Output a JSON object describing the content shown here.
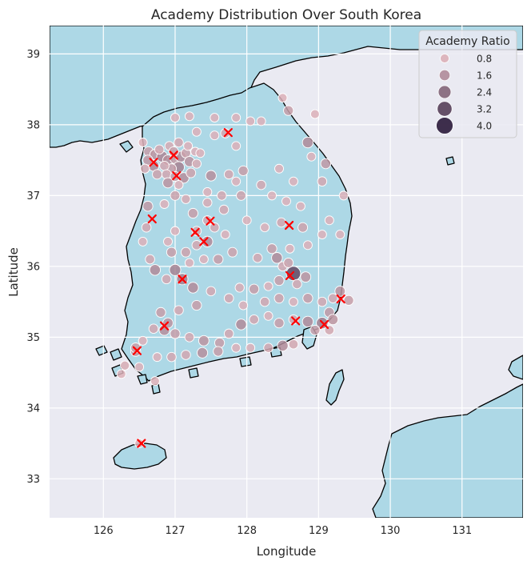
{
  "chart_data": {
    "type": "scatter",
    "title": "Academy Distribution Over South Korea",
    "xlabel": "Longitude",
    "ylabel": "Latitude",
    "xlim": [
      125.25,
      131.85
    ],
    "ylim": [
      32.45,
      39.4
    ],
    "xticks": [
      "126",
      "127",
      "128",
      "129",
      "130",
      "131"
    ],
    "yticks": [
      "33",
      "34",
      "35",
      "36",
      "37",
      "38",
      "39"
    ],
    "grid": true,
    "legend": {
      "title": "Academy Ratio",
      "placement": "top-right",
      "entries": [
        {
          "label": "0.8",
          "value": 0.8
        },
        {
          "label": "1.6",
          "value": 1.6
        },
        {
          "label": "2.4",
          "value": 2.4
        },
        {
          "label": "3.2",
          "value": 3.2
        },
        {
          "label": "4.0",
          "value": 4.0
        }
      ]
    },
    "colors": {
      "ocean": "#eaeaf2",
      "land": "#add8e6",
      "coast": "#000000",
      "grid": "#ffffff",
      "cross": "#ff0000",
      "ratio_low": "#dcb0b8",
      "ratio_high": "#2a1a3a"
    },
    "series": [
      {
        "name": "Academy Ratio",
        "marker": "circle",
        "points": [
          [
            126.55,
            37.75,
            0.8
          ],
          [
            126.63,
            37.62,
            1.2
          ],
          [
            126.72,
            37.58,
            1.4
          ],
          [
            126.82,
            37.55,
            1.7
          ],
          [
            126.9,
            37.5,
            1.5
          ],
          [
            127.0,
            37.52,
            1.3
          ],
          [
            127.08,
            37.55,
            1.6
          ],
          [
            127.15,
            37.6,
            1.1
          ],
          [
            127.2,
            37.48,
            1.4
          ],
          [
            127.05,
            37.4,
            1.8
          ],
          [
            126.95,
            37.38,
            1.2
          ],
          [
            126.85,
            37.42,
            1.0
          ],
          [
            126.7,
            37.42,
            1.6
          ],
          [
            126.62,
            37.5,
            1.3
          ],
          [
            126.78,
            37.65,
            1.0
          ],
          [
            126.92,
            37.7,
            0.9
          ],
          [
            127.05,
            37.75,
            1.0
          ],
          [
            127.18,
            37.7,
            0.8
          ],
          [
            126.75,
            37.3,
            1.1
          ],
          [
            126.88,
            37.3,
            1.0
          ],
          [
            127.0,
            37.27,
            1.2
          ],
          [
            127.12,
            37.25,
            1.5
          ],
          [
            127.22,
            37.32,
            1.1
          ],
          [
            127.3,
            37.45,
            0.9
          ],
          [
            127.28,
            37.62,
            0.8
          ],
          [
            126.98,
            37.62,
            1.2
          ],
          [
            126.58,
            37.38,
            0.9
          ],
          [
            126.9,
            37.18,
            1.4
          ],
          [
            127.05,
            37.15,
            0.8
          ],
          [
            127.0,
            37.0,
            1.1
          ],
          [
            127.15,
            36.95,
            0.9
          ],
          [
            126.85,
            36.88,
            0.8
          ],
          [
            126.62,
            36.85,
            1.3
          ],
          [
            127.45,
            37.05,
            0.8
          ],
          [
            127.5,
            37.28,
            1.5
          ],
          [
            127.75,
            37.3,
            1.0
          ],
          [
            127.95,
            37.35,
            1.2
          ],
          [
            127.85,
            37.2,
            0.8
          ],
          [
            128.2,
            37.15,
            1.0
          ],
          [
            128.45,
            37.38,
            0.8
          ],
          [
            128.65,
            37.2,
            0.8
          ],
          [
            128.9,
            37.55,
            0.8
          ],
          [
            129.05,
            37.2,
            1.0
          ],
          [
            129.1,
            37.45,
            1.3
          ],
          [
            129.15,
            36.65,
            0.8
          ],
          [
            129.35,
            37.0,
            0.8
          ],
          [
            129.3,
            36.45,
            0.8
          ],
          [
            128.58,
            38.2,
            1.2
          ],
          [
            128.5,
            38.38,
            0.8
          ],
          [
            128.85,
            37.75,
            1.6
          ],
          [
            128.05,
            38.05,
            0.8
          ],
          [
            127.85,
            38.1,
            0.8
          ],
          [
            127.55,
            38.1,
            0.8
          ],
          [
            127.2,
            38.12,
            0.8
          ],
          [
            127.0,
            38.1,
            0.8
          ],
          [
            127.3,
            37.9,
            0.8
          ],
          [
            127.55,
            37.85,
            0.8
          ],
          [
            127.85,
            37.7,
            0.8
          ],
          [
            128.2,
            38.05,
            0.8
          ],
          [
            127.7,
            37.88,
            1.0
          ],
          [
            127.35,
            37.6,
            0.8
          ],
          [
            128.95,
            38.15,
            0.8
          ],
          [
            127.65,
            37.0,
            1.0
          ],
          [
            127.92,
            37.0,
            1.1
          ],
          [
            128.35,
            37.0,
            0.8
          ],
          [
            128.55,
            36.92,
            0.8
          ],
          [
            128.75,
            36.85,
            0.8
          ],
          [
            128.0,
            36.65,
            0.8
          ],
          [
            128.25,
            36.55,
            0.8
          ],
          [
            128.48,
            36.62,
            1.0
          ],
          [
            128.78,
            36.55,
            1.1
          ],
          [
            129.05,
            36.45,
            0.8
          ],
          [
            128.85,
            36.3,
            0.8
          ],
          [
            128.6,
            36.25,
            0.8
          ],
          [
            128.35,
            36.25,
            1.2
          ],
          [
            128.15,
            36.12,
            1.0
          ],
          [
            128.42,
            36.12,
            1.6
          ],
          [
            128.5,
            36.0,
            1.0
          ],
          [
            128.65,
            35.9,
            3.0
          ],
          [
            128.58,
            36.05,
            1.1
          ],
          [
            128.45,
            35.8,
            1.2
          ],
          [
            128.7,
            35.75,
            1.0
          ],
          [
            128.82,
            35.85,
            1.4
          ],
          [
            128.3,
            35.72,
            0.8
          ],
          [
            128.1,
            35.68,
            1.2
          ],
          [
            127.9,
            35.7,
            0.9
          ],
          [
            127.75,
            35.55,
            1.0
          ],
          [
            127.95,
            35.45,
            0.8
          ],
          [
            128.25,
            35.5,
            1.0
          ],
          [
            128.45,
            35.55,
            1.1
          ],
          [
            128.65,
            35.5,
            0.8
          ],
          [
            128.85,
            35.55,
            1.2
          ],
          [
            129.05,
            35.5,
            1.0
          ],
          [
            129.2,
            35.55,
            1.0
          ],
          [
            129.42,
            35.52,
            1.2
          ],
          [
            129.3,
            35.65,
            1.4
          ],
          [
            129.15,
            35.35,
            1.3
          ],
          [
            129.05,
            35.2,
            1.9
          ],
          [
            128.95,
            35.1,
            1.2
          ],
          [
            129.15,
            35.1,
            1.0
          ],
          [
            129.2,
            35.25,
            1.4
          ],
          [
            128.85,
            35.22,
            1.6
          ],
          [
            128.65,
            35.25,
            1.0
          ],
          [
            128.45,
            35.2,
            1.2
          ],
          [
            128.3,
            35.3,
            0.8
          ],
          [
            128.1,
            35.25,
            1.0
          ],
          [
            127.92,
            35.18,
            1.6
          ],
          [
            127.75,
            35.05,
            1.0
          ],
          [
            127.62,
            34.92,
            1.2
          ],
          [
            127.4,
            34.95,
            1.4
          ],
          [
            127.2,
            35.0,
            1.0
          ],
          [
            127.0,
            35.05,
            1.2
          ],
          [
            126.85,
            35.1,
            1.5
          ],
          [
            126.9,
            35.2,
            1.4
          ],
          [
            126.7,
            35.12,
            1.0
          ],
          [
            126.55,
            34.95,
            0.8
          ],
          [
            126.45,
            34.8,
            1.3
          ],
          [
            126.3,
            34.6,
            0.9
          ],
          [
            126.25,
            34.48,
            0.8
          ],
          [
            126.5,
            34.58,
            0.8
          ],
          [
            126.75,
            34.72,
            0.8
          ],
          [
            126.95,
            34.72,
            1.0
          ],
          [
            127.15,
            34.75,
            1.0
          ],
          [
            127.38,
            34.78,
            1.5
          ],
          [
            127.6,
            34.8,
            1.2
          ],
          [
            127.85,
            34.85,
            0.8
          ],
          [
            128.05,
            34.85,
            0.8
          ],
          [
            128.3,
            34.85,
            1.0
          ],
          [
            128.5,
            34.88,
            1.6
          ],
          [
            128.65,
            34.9,
            1.0
          ],
          [
            126.72,
            34.38,
            0.8
          ],
          [
            126.8,
            35.35,
            1.2
          ],
          [
            127.05,
            35.38,
            1.0
          ],
          [
            127.3,
            35.45,
            1.2
          ],
          [
            127.5,
            35.65,
            1.0
          ],
          [
            127.25,
            35.7,
            1.6
          ],
          [
            127.1,
            35.82,
            1.8
          ],
          [
            126.88,
            35.82,
            1.0
          ],
          [
            126.72,
            35.95,
            1.6
          ],
          [
            126.65,
            36.1,
            1.0
          ],
          [
            126.55,
            36.35,
            0.8
          ],
          [
            126.6,
            36.55,
            1.0
          ],
          [
            126.95,
            36.2,
            1.2
          ],
          [
            127.15,
            36.2,
            1.1
          ],
          [
            127.3,
            36.3,
            1.0
          ],
          [
            127.45,
            36.35,
            1.6
          ],
          [
            127.55,
            36.55,
            1.0
          ],
          [
            127.7,
            36.45,
            0.8
          ],
          [
            127.8,
            36.2,
            1.1
          ],
          [
            127.6,
            36.1,
            1.2
          ],
          [
            127.4,
            36.1,
            0.8
          ],
          [
            127.2,
            36.05,
            0.8
          ],
          [
            127.0,
            35.95,
            1.8
          ],
          [
            126.9,
            36.35,
            0.8
          ],
          [
            127.0,
            36.5,
            0.8
          ],
          [
            127.25,
            36.75,
            1.2
          ],
          [
            127.45,
            36.65,
            1.0
          ],
          [
            127.68,
            36.8,
            1.0
          ],
          [
            127.3,
            36.5,
            1.0
          ],
          [
            127.45,
            36.9,
            0.9
          ],
          [
            126.5,
            33.5,
            0.8
          ],
          [
            126.45,
            34.85,
            1.2
          ]
        ]
      },
      {
        "name": "",
        "marker": "x",
        "points": [
          [
            126.7,
            37.47
          ],
          [
            126.98,
            37.57
          ],
          [
            127.02,
            37.28
          ],
          [
            127.74,
            37.89
          ],
          [
            126.68,
            36.67
          ],
          [
            127.28,
            36.48
          ],
          [
            127.4,
            36.35
          ],
          [
            127.49,
            36.64
          ],
          [
            128.59,
            36.58
          ],
          [
            127.1,
            35.82
          ],
          [
            128.6,
            35.87
          ],
          [
            129.31,
            35.54
          ],
          [
            128.68,
            35.23
          ],
          [
            129.08,
            35.18
          ],
          [
            126.85,
            35.16
          ],
          [
            126.47,
            34.81
          ],
          [
            126.53,
            33.5
          ]
        ]
      }
    ]
  }
}
